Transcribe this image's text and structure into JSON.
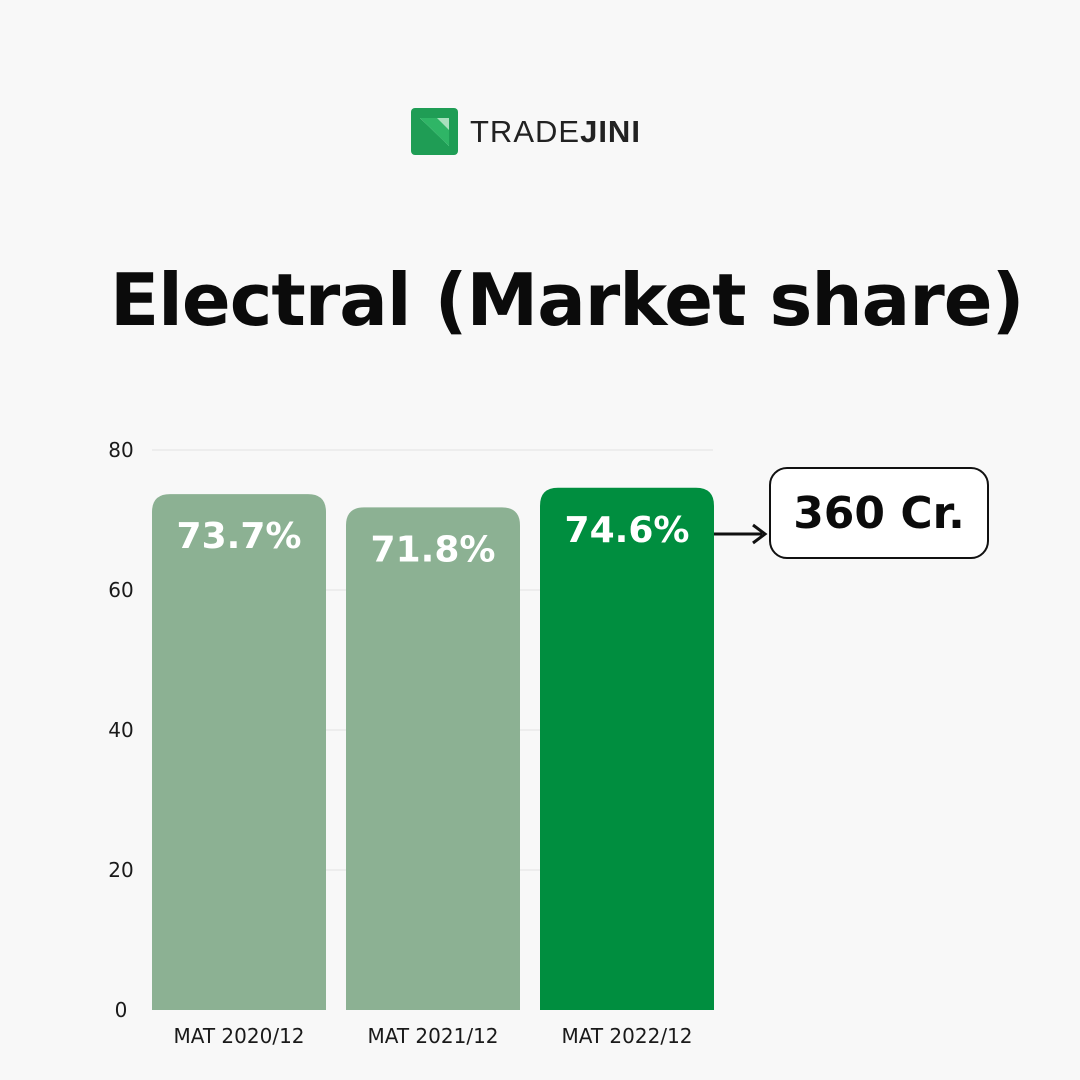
{
  "brand": {
    "name_light": "TRADE",
    "name_bold": "JINI",
    "logo_icon": "tradejini-logo-icon",
    "color": "#1f9d55"
  },
  "title": "Electral (Market share)",
  "callout": {
    "label": "360 Cr."
  },
  "colors": {
    "bar_default": "#8cb193",
    "bar_highlight": "#008e3f",
    "grid": "#e2e2e2",
    "text": "#1a1a1a",
    "bar_label": "#ffffff"
  },
  "chart_data": {
    "type": "bar",
    "categories": [
      "MAT 2020/12",
      "MAT 2021/12",
      "MAT 2022/12"
    ],
    "values": [
      73.7,
      71.8,
      74.6
    ],
    "data_labels": [
      "73.7%",
      "71.8%",
      "74.6%"
    ],
    "highlight_index": 2,
    "ylim": [
      0,
      80
    ],
    "yticks": [
      0,
      20,
      40,
      60,
      80
    ],
    "grid": true,
    "title": "",
    "xlabel": "",
    "ylabel": ""
  }
}
